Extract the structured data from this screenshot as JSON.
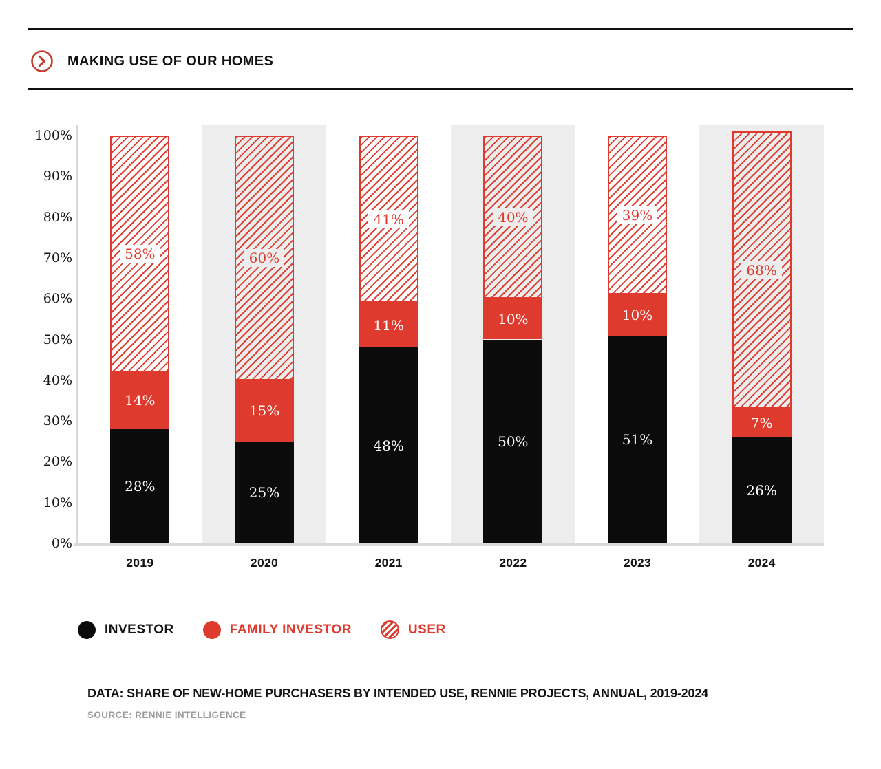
{
  "header": {
    "title": "MAKING USE OF OUR HOMES",
    "icon": "chevron-right-circle-icon"
  },
  "chart_data": {
    "type": "bar",
    "stacked": true,
    "orientation": "vertical",
    "categories": [
      "2019",
      "2020",
      "2021",
      "2022",
      "2023",
      "2024"
    ],
    "series": [
      {
        "name": "INVESTOR",
        "style": "solid-black",
        "values": [
          28,
          25,
          48,
          50,
          51,
          26
        ]
      },
      {
        "name": "FAMILY INVESTOR",
        "style": "solid-red",
        "values": [
          14,
          15,
          11,
          10,
          10,
          7
        ]
      },
      {
        "name": "USER",
        "style": "hatched-red",
        "values": [
          58,
          60,
          41,
          40,
          39,
          68
        ]
      }
    ],
    "value_suffix": "%",
    "y_ticks": [
      "0%",
      "10%",
      "20%",
      "30%",
      "40%",
      "50%",
      "60%",
      "70%",
      "80%",
      "90%",
      "100%"
    ],
    "ylim": [
      0,
      100
    ],
    "grid": false,
    "alternating_column_shading": true,
    "legend_position": "bottom"
  },
  "legend": {
    "items": [
      {
        "label": "INVESTOR",
        "swatch": "black-dot"
      },
      {
        "label": "FAMILY INVESTOR",
        "swatch": "red-dot"
      },
      {
        "label": "USER",
        "swatch": "red-hatched-circle"
      }
    ]
  },
  "footer": {
    "data_line": "DATA: SHARE OF NEW-HOME PURCHASERS BY INTENDED USE, RENNIE PROJECTS, ANNUAL, 2019-2024",
    "source_line": "SOURCE: RENNIE INTELLIGENCE"
  },
  "colors": {
    "red": "#de3b2e",
    "icon_red": "#c73b2d",
    "black": "#0b0b0b",
    "column_bg": "#ededed",
    "axis": "#d9d9d9",
    "text": "#131313",
    "source_text": "#9b9b9b",
    "white": "#ffffff"
  }
}
